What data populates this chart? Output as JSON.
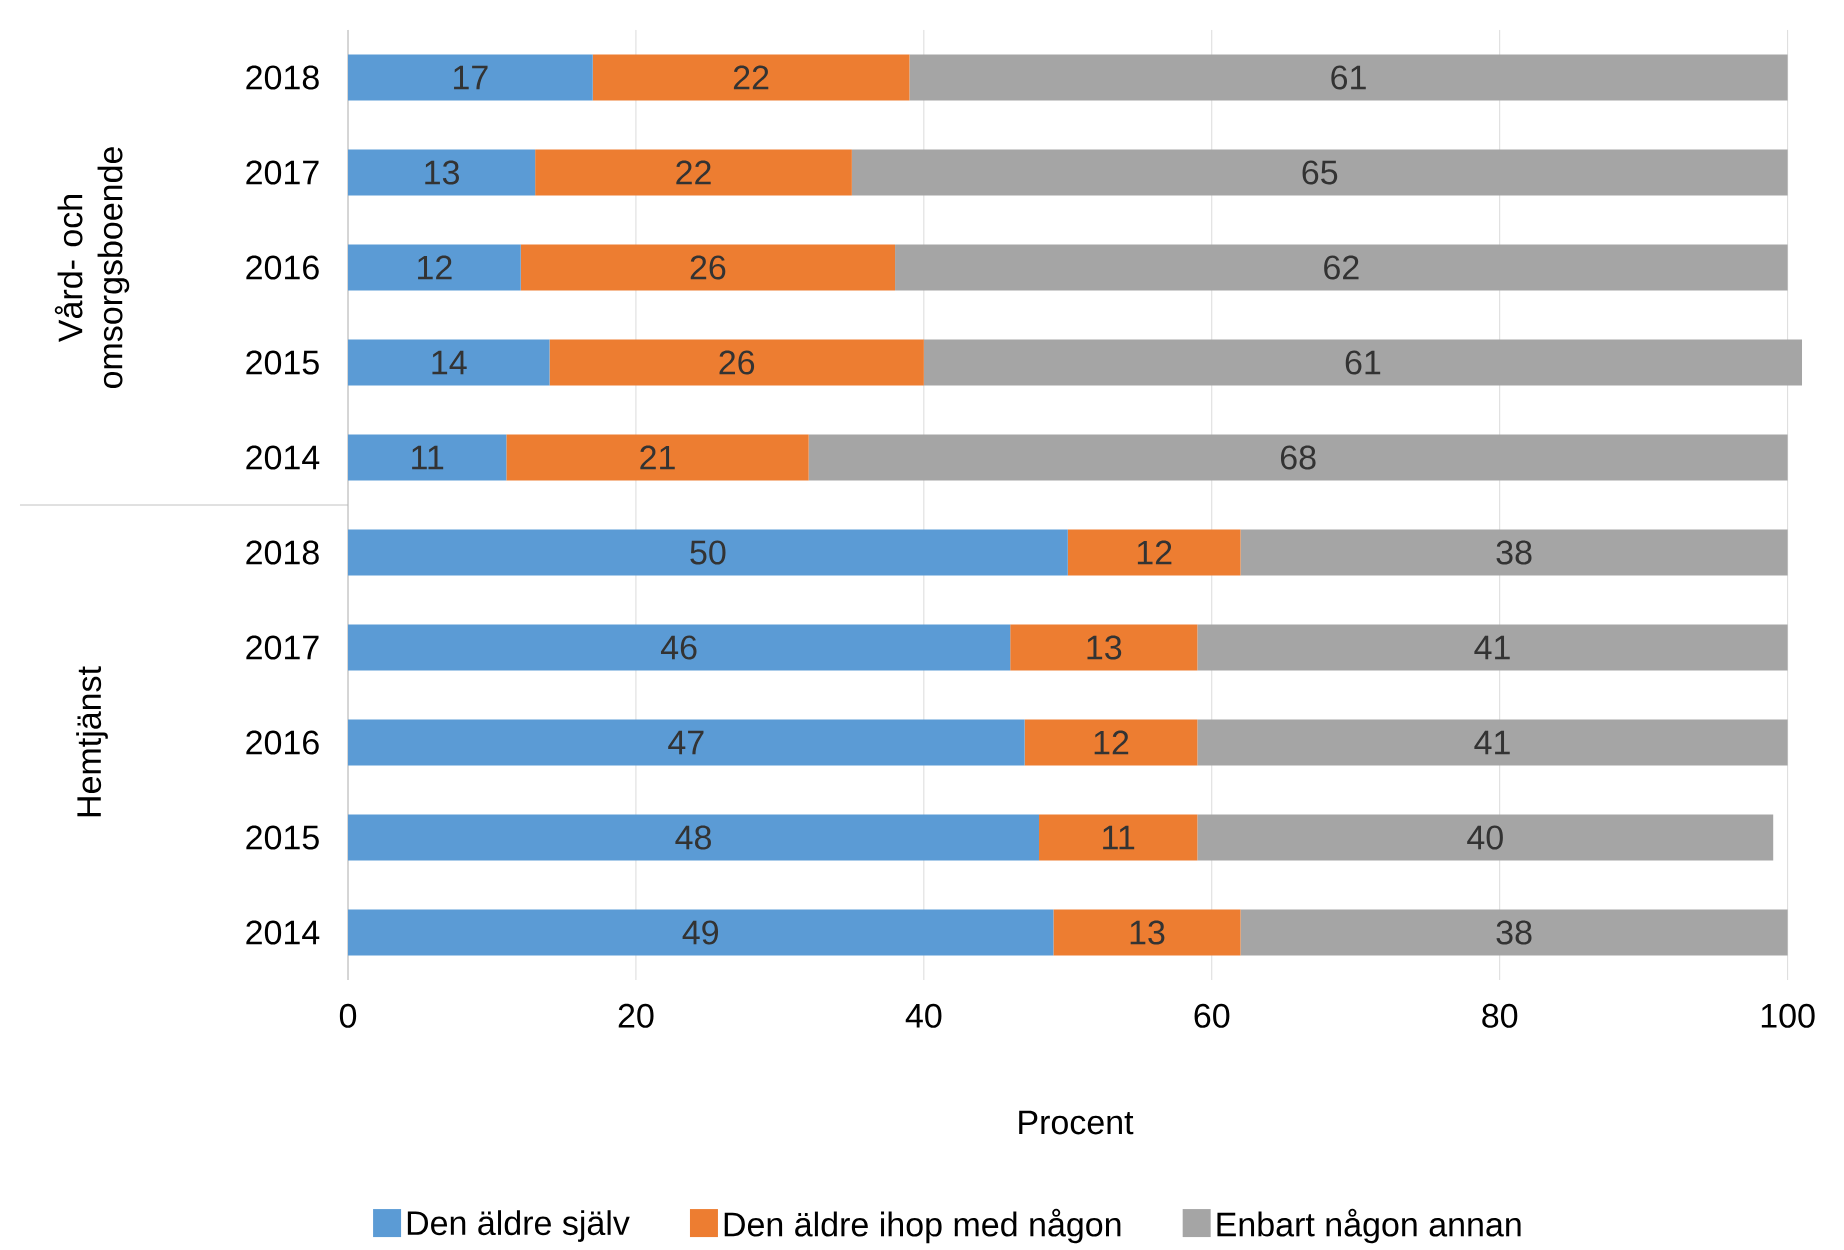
{
  "chart_data": {
    "type": "bar",
    "orientation": "horizontal",
    "stacked": true,
    "data_labels": true,
    "categories": [
      "2018",
      "2017",
      "2016",
      "2015",
      "2014",
      "2018",
      "2017",
      "2016",
      "2015",
      "2014"
    ],
    "series": [
      {
        "name": "Den äldre själv",
        "color": "#5b9bd5",
        "values": [
          17,
          13,
          12,
          14,
          11,
          50,
          46,
          47,
          48,
          49
        ]
      },
      {
        "name": "Den äldre ihop med någon",
        "color": "#ed7d31",
        "values": [
          22,
          22,
          26,
          26,
          21,
          12,
          13,
          12,
          11,
          13
        ]
      },
      {
        "name": "Enbart någon annan",
        "color": "#a5a5a5",
        "values": [
          61,
          65,
          62,
          61,
          68,
          38,
          41,
          41,
          40,
          38
        ]
      }
    ],
    "xlabel": "Procent",
    "xlim": [
      0,
      101
    ],
    "xticks": [
      0,
      20,
      40,
      60,
      80,
      100
    ],
    "grid": "x",
    "legend": "bottom",
    "annotations": [
      "Vård- och omsorgsboende",
      "Hemtjänst"
    ]
  }
}
